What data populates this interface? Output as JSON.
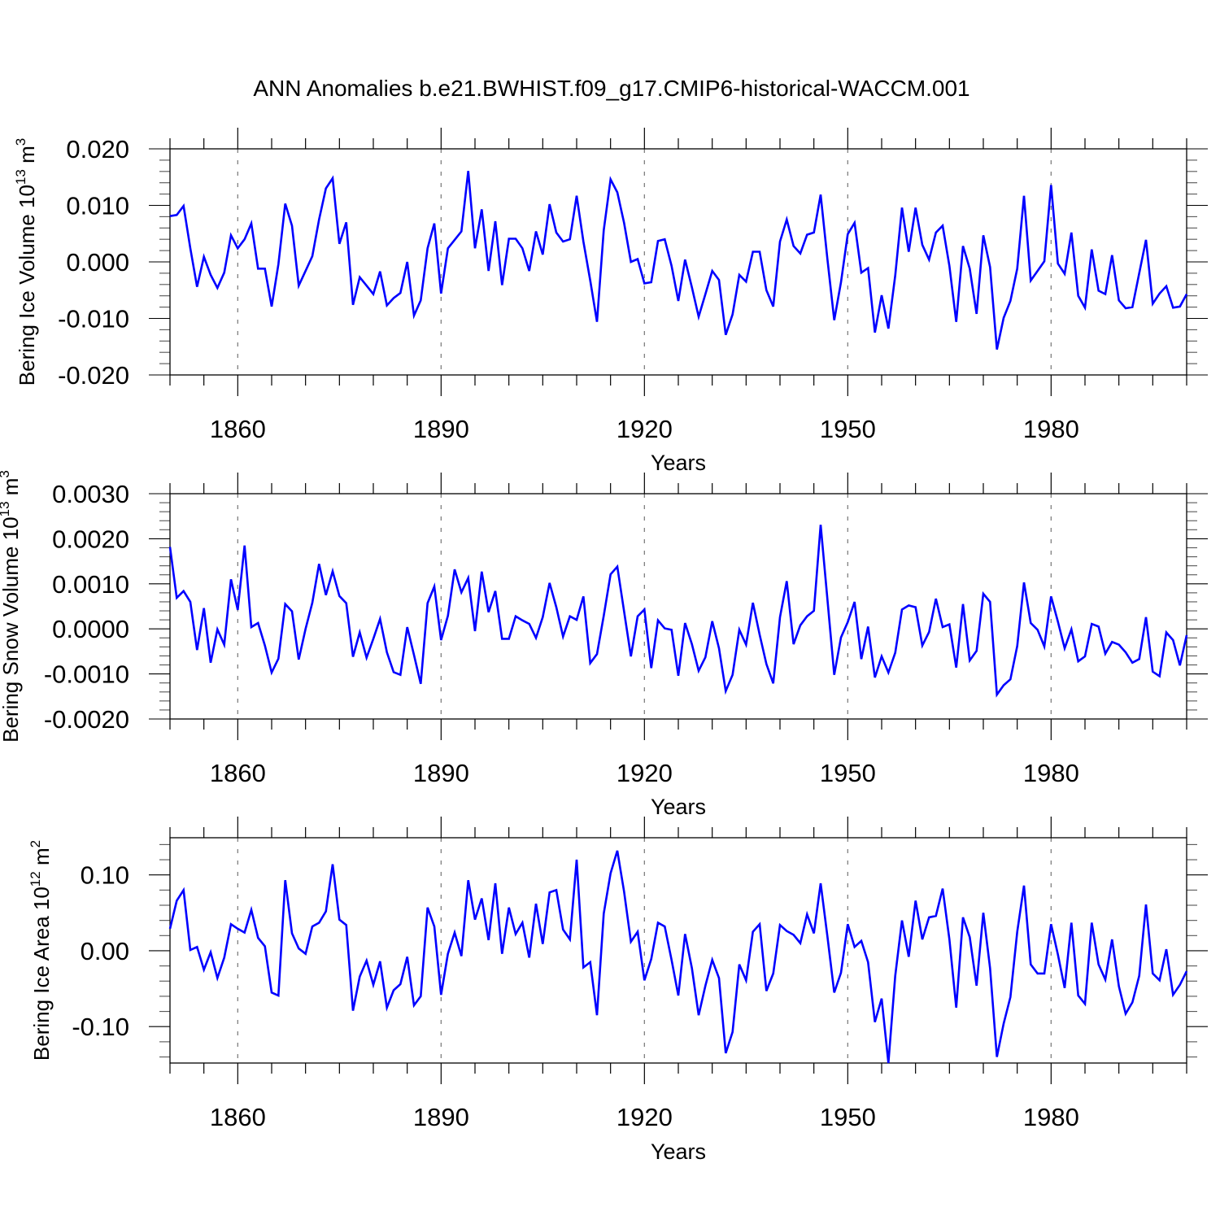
{
  "title": "ANN Anomalies b.e21.BWHIST.f09_g17.CMIP6-historical-WACCM.001",
  "line_color": "#0000ff",
  "grid_color": "#808080",
  "chart_data": [
    {
      "type": "line",
      "xlabel": "Years",
      "ylabel": {
        "text": "Bering Ice Volume 10",
        "exp": "13",
        "unit": " m",
        "unit_exp": "3"
      },
      "xlim": [
        1850,
        2000
      ],
      "ylim": [
        -0.02,
        0.02
      ],
      "xticks": [
        1860,
        1890,
        1920,
        1950,
        1980
      ],
      "xtick_labels": [
        "1860",
        "1890",
        "1920",
        "1950",
        "1980"
      ],
      "yticks": [
        -0.02,
        -0.01,
        0.0,
        0.01,
        0.02
      ],
      "ytick_labels": [
        "-0.020",
        "-0.010",
        "0.000",
        "0.010",
        "0.020"
      ],
      "yminor_step": 0.002,
      "grid": "vertical dashed at major x ticks",
      "x": [
        1850,
        1851,
        1852,
        1853,
        1854,
        1855,
        1856,
        1857,
        1858,
        1859,
        1860,
        1861,
        1862,
        1863,
        1864,
        1865,
        1866,
        1867,
        1868,
        1869,
        1870,
        1871,
        1872,
        1873,
        1874,
        1875,
        1876,
        1877,
        1878,
        1879,
        1880,
        1881,
        1882,
        1883,
        1884,
        1885,
        1886,
        1887,
        1888,
        1889,
        1890,
        1891,
        1892,
        1893,
        1894,
        1895,
        1896,
        1897,
        1898,
        1899,
        1900,
        1901,
        1902,
        1903,
        1904,
        1905,
        1906,
        1907,
        1908,
        1909,
        1910,
        1911,
        1912,
        1913,
        1914,
        1915,
        1916,
        1917,
        1918,
        1919,
        1920,
        1921,
        1922,
        1923,
        1924,
        1925,
        1926,
        1927,
        1928,
        1929,
        1930,
        1931,
        1932,
        1933,
        1934,
        1935,
        1936,
        1937,
        1938,
        1939,
        1940,
        1941,
        1942,
        1943,
        1944,
        1945,
        1946,
        1947,
        1948,
        1949,
        1950,
        1951,
        1952,
        1953,
        1954,
        1955,
        1956,
        1957,
        1958,
        1959,
        1960,
        1961,
        1962,
        1963,
        1964,
        1965,
        1966,
        1967,
        1968,
        1969,
        1970,
        1971,
        1972,
        1973,
        1974,
        1975,
        1976,
        1977,
        1978,
        1979,
        1980,
        1981,
        1982,
        1983,
        1984,
        1985,
        1986,
        1987,
        1988,
        1989,
        1990,
        1991,
        1992,
        1993,
        1994,
        1995,
        1996,
        1997,
        1998,
        1999,
        2000
      ],
      "values": [
        0.0081,
        0.0083,
        0.0099,
        0.0024,
        -0.0044,
        0.0009,
        -0.0023,
        -0.0046,
        -0.0019,
        0.0047,
        0.0024,
        0.004,
        0.0068,
        -0.0012,
        -0.0012,
        -0.0079,
        -0.0004,
        0.0103,
        0.0064,
        -0.0042,
        -0.0016,
        0.001,
        0.0075,
        0.013,
        0.0148,
        0.0032,
        0.007,
        -0.0076,
        -0.0027,
        -0.0042,
        -0.0057,
        -0.0017,
        -0.0077,
        -0.0064,
        -0.0055,
        0.0,
        -0.0095,
        -0.0068,
        0.0024,
        0.0068,
        -0.0056,
        0.0024,
        0.0039,
        0.0054,
        0.0161,
        0.0024,
        0.0093,
        -0.0016,
        0.0072,
        -0.0041,
        0.0041,
        0.0041,
        0.0024,
        -0.0016,
        0.0054,
        0.0013,
        0.0102,
        0.0052,
        0.0036,
        0.004,
        0.0117,
        0.0036,
        -0.0033,
        -0.0106,
        0.0056,
        0.0146,
        0.0123,
        0.0069,
        0.0,
        0.0005,
        -0.0038,
        -0.0036,
        0.0037,
        0.004,
        -0.0007,
        -0.0069,
        0.0004,
        -0.0045,
        -0.0097,
        -0.0057,
        -0.0016,
        -0.0032,
        -0.0129,
        -0.0093,
        -0.0023,
        -0.0035,
        0.0018,
        0.0018,
        -0.005,
        -0.0079,
        0.0036,
        0.0075,
        0.0028,
        0.0015,
        0.0048,
        0.0052,
        0.0119,
        0.0005,
        -0.0103,
        -0.0036,
        0.0049,
        0.0069,
        -0.0019,
        -0.0011,
        -0.0125,
        -0.0059,
        -0.0118,
        -0.0024,
        0.0096,
        0.0018,
        0.0096,
        0.003,
        0.0004,
        0.0052,
        0.0064,
        -0.0007,
        -0.0106,
        0.0028,
        -0.0012,
        -0.0092,
        0.0047,
        -0.0009,
        -0.0155,
        -0.0099,
        -0.0069,
        -0.0012,
        0.0117,
        -0.0033,
        -0.0016,
        0.0001,
        0.0136,
        -0.0003,
        -0.0021,
        0.0052,
        -0.006,
        -0.0081,
        0.0022,
        -0.0051,
        -0.0057,
        0.0012,
        -0.0068,
        -0.0082,
        -0.008,
        -0.002,
        0.0039,
        -0.0074,
        -0.0056,
        -0.0043,
        -0.0081,
        -0.0079,
        -0.0057
      ]
    },
    {
      "type": "line",
      "xlabel": "Years",
      "ylabel": {
        "text": "Bering Snow Volume 10",
        "exp": "13",
        "unit": " m",
        "unit_exp": "3"
      },
      "xlim": [
        1850,
        2000
      ],
      "ylim": [
        -0.002,
        0.003
      ],
      "xticks": [
        1860,
        1890,
        1920,
        1950,
        1980
      ],
      "xtick_labels": [
        "1860",
        "1890",
        "1920",
        "1950",
        "1980"
      ],
      "yticks": [
        -0.002,
        -0.001,
        0.0,
        0.001,
        0.002,
        0.003
      ],
      "ytick_labels": [
        "-0.0020",
        "-0.0010",
        "0.0000",
        "0.0010",
        "0.0020",
        "0.0030"
      ],
      "yminor_step": 0.0002,
      "grid": "vertical dashed at major x ticks",
      "x": [
        1850,
        1851,
        1852,
        1853,
        1854,
        1855,
        1856,
        1857,
        1858,
        1859,
        1860,
        1861,
        1862,
        1863,
        1864,
        1865,
        1866,
        1867,
        1868,
        1869,
        1870,
        1871,
        1872,
        1873,
        1874,
        1875,
        1876,
        1877,
        1878,
        1879,
        1880,
        1881,
        1882,
        1883,
        1884,
        1885,
        1886,
        1887,
        1888,
        1889,
        1890,
        1891,
        1892,
        1893,
        1894,
        1895,
        1896,
        1897,
        1898,
        1899,
        1900,
        1901,
        1902,
        1903,
        1904,
        1905,
        1906,
        1907,
        1908,
        1909,
        1910,
        1911,
        1912,
        1913,
        1914,
        1915,
        1916,
        1917,
        1918,
        1919,
        1920,
        1921,
        1922,
        1923,
        1924,
        1925,
        1926,
        1927,
        1928,
        1929,
        1930,
        1931,
        1932,
        1933,
        1934,
        1935,
        1936,
        1937,
        1938,
        1939,
        1940,
        1941,
        1942,
        1943,
        1944,
        1945,
        1946,
        1947,
        1948,
        1949,
        1950,
        1951,
        1952,
        1953,
        1954,
        1955,
        1956,
        1957,
        1958,
        1959,
        1960,
        1961,
        1962,
        1963,
        1964,
        1965,
        1966,
        1967,
        1968,
        1969,
        1970,
        1971,
        1972,
        1973,
        1974,
        1975,
        1976,
        1977,
        1978,
        1979,
        1980,
        1981,
        1982,
        1983,
        1984,
        1985,
        1986,
        1987,
        1988,
        1989,
        1990,
        1991,
        1992,
        1993,
        1994,
        1995,
        1996,
        1997,
        1998,
        1999,
        2000
      ],
      "values": [
        0.00182,
        0.00069,
        0.00084,
        0.0006,
        -0.00047,
        0.00046,
        -0.00075,
        -1e-05,
        -0.00035,
        0.0011,
        0.00042,
        0.00185,
        4e-05,
        0.00013,
        -0.00037,
        -0.00097,
        -0.00066,
        0.00055,
        0.00039,
        -0.00068,
        0.0,
        0.00058,
        0.00144,
        0.00075,
        0.00128,
        0.00073,
        0.00057,
        -0.00062,
        -8e-05,
        -0.00064,
        -0.00022,
        0.00022,
        -0.00052,
        -0.00096,
        -0.00102,
        4e-05,
        -0.00058,
        -0.00122,
        0.00057,
        0.00094,
        -0.00025,
        0.00029,
        0.00132,
        0.00081,
        0.00113,
        -5e-05,
        0.00127,
        0.00037,
        0.00084,
        -0.00022,
        -0.00022,
        0.00028,
        0.00019,
        0.00011,
        -0.0002,
        0.00026,
        0.00102,
        0.00048,
        -0.00017,
        0.00028,
        0.0002,
        0.00072,
        -0.00076,
        -0.00056,
        0.00029,
        0.00121,
        0.00138,
        0.00039,
        -0.00061,
        0.00028,
        0.00043,
        -0.00087,
        0.00019,
        1e-05,
        -2e-05,
        -0.00104,
        0.00013,
        -0.00034,
        -0.00093,
        -0.00063,
        0.00017,
        -0.00043,
        -0.00138,
        -0.00102,
        -2e-05,
        -0.00035,
        0.00058,
        -0.00013,
        -0.00078,
        -0.00121,
        0.00026,
        0.00106,
        -0.00034,
        8e-05,
        0.00028,
        0.0004,
        0.00231,
        0.00066,
        -0.00102,
        -0.00019,
        0.00015,
        0.0006,
        -0.00067,
        5e-05,
        -0.00108,
        -0.00061,
        -0.00097,
        -0.00053,
        0.00043,
        0.00052,
        0.00048,
        -0.00037,
        -7e-05,
        0.00067,
        4e-05,
        0.0001,
        -0.00086,
        0.00055,
        -0.0007,
        -0.00049,
        0.00078,
        0.0006,
        -0.00146,
        -0.00125,
        -0.00112,
        -0.00038,
        0.00103,
        0.00013,
        -2e-05,
        -0.00039,
        0.00072,
        0.00016,
        -0.00043,
        -1e-05,
        -0.00072,
        -0.00061,
        0.00011,
        5e-05,
        -0.00055,
        -0.00029,
        -0.00035,
        -0.00052,
        -0.00075,
        -0.00067,
        0.00026,
        -0.00095,
        -0.00105,
        -8e-05,
        -0.00025,
        -0.00081,
        -0.00014
      ]
    },
    {
      "type": "line",
      "xlabel": "Years",
      "ylabel": {
        "text": "Bering Ice Area 10",
        "exp": "12",
        "unit": " m",
        "unit_exp": "2"
      },
      "xlim": [
        1850,
        2000
      ],
      "ylim": [
        -0.148,
        0.149
      ],
      "xticks": [
        1860,
        1890,
        1920,
        1950,
        1980
      ],
      "xtick_labels": [
        "1860",
        "1890",
        "1920",
        "1950",
        "1980"
      ],
      "yticks": [
        -0.1,
        0.0,
        0.1
      ],
      "ytick_labels": [
        "-0.10",
        "0.00",
        "0.10"
      ],
      "yminor_step": 0.02,
      "grid": "vertical dashed at major x ticks",
      "x": [
        1850,
        1851,
        1852,
        1853,
        1854,
        1855,
        1856,
        1857,
        1858,
        1859,
        1860,
        1861,
        1862,
        1863,
        1864,
        1865,
        1866,
        1867,
        1868,
        1869,
        1870,
        1871,
        1872,
        1873,
        1874,
        1875,
        1876,
        1877,
        1878,
        1879,
        1880,
        1881,
        1882,
        1883,
        1884,
        1885,
        1886,
        1887,
        1888,
        1889,
        1890,
        1891,
        1892,
        1893,
        1894,
        1895,
        1896,
        1897,
        1898,
        1899,
        1900,
        1901,
        1902,
        1903,
        1904,
        1905,
        1906,
        1907,
        1908,
        1909,
        1910,
        1911,
        1912,
        1913,
        1914,
        1915,
        1916,
        1917,
        1918,
        1919,
        1920,
        1921,
        1922,
        1923,
        1924,
        1925,
        1926,
        1927,
        1928,
        1929,
        1930,
        1931,
        1932,
        1933,
        1934,
        1935,
        1936,
        1937,
        1938,
        1939,
        1940,
        1941,
        1942,
        1943,
        1944,
        1945,
        1946,
        1947,
        1948,
        1949,
        1950,
        1951,
        1952,
        1953,
        1954,
        1955,
        1956,
        1957,
        1958,
        1959,
        1960,
        1961,
        1962,
        1963,
        1964,
        1965,
        1966,
        1967,
        1968,
        1969,
        1970,
        1971,
        1972,
        1973,
        1974,
        1975,
        1976,
        1977,
        1978,
        1979,
        1980,
        1981,
        1982,
        1983,
        1984,
        1985,
        1986,
        1987,
        1988,
        1989,
        1990,
        1991,
        1992,
        1993,
        1994,
        1995,
        1996,
        1997,
        1998,
        1999,
        2000
      ],
      "values": [
        0.029,
        0.066,
        0.08,
        0.001,
        0.005,
        -0.025,
        -0.002,
        -0.036,
        -0.009,
        0.035,
        0.029,
        0.024,
        0.054,
        0.017,
        0.006,
        -0.055,
        -0.059,
        0.093,
        0.023,
        0.003,
        -0.004,
        0.032,
        0.037,
        0.052,
        0.114,
        0.041,
        0.034,
        -0.079,
        -0.034,
        -0.013,
        -0.045,
        -0.014,
        -0.075,
        -0.052,
        -0.044,
        -0.008,
        -0.072,
        -0.06,
        0.057,
        0.032,
        -0.058,
        -0.004,
        0.024,
        -0.007,
        0.093,
        0.041,
        0.069,
        0.014,
        0.089,
        -0.004,
        0.057,
        0.022,
        0.037,
        -0.009,
        0.062,
        0.009,
        0.077,
        0.08,
        0.028,
        0.015,
        0.12,
        -0.022,
        -0.015,
        -0.085,
        0.049,
        0.102,
        0.132,
        0.078,
        0.012,
        0.025,
        -0.039,
        -0.011,
        0.037,
        0.032,
        -0.012,
        -0.059,
        0.022,
        -0.023,
        -0.085,
        -0.046,
        -0.012,
        -0.036,
        -0.135,
        -0.107,
        -0.018,
        -0.039,
        0.025,
        0.035,
        -0.053,
        -0.03,
        0.034,
        0.026,
        0.021,
        0.01,
        0.048,
        0.023,
        0.089,
        0.019,
        -0.055,
        -0.029,
        0.035,
        0.005,
        0.013,
        -0.015,
        -0.094,
        -0.063,
        -0.148,
        -0.033,
        0.04,
        -0.008,
        0.066,
        0.015,
        0.044,
        0.046,
        0.082,
        0.015,
        -0.075,
        0.044,
        0.018,
        -0.046,
        0.05,
        -0.023,
        -0.14,
        -0.096,
        -0.061,
        0.025,
        0.086,
        -0.018,
        -0.03,
        -0.03,
        0.035,
        -0.005,
        -0.049,
        0.037,
        -0.059,
        -0.07,
        0.037,
        -0.018,
        -0.038,
        0.015,
        -0.047,
        -0.083,
        -0.068,
        -0.033,
        0.061,
        -0.03,
        -0.039,
        0.002,
        -0.058,
        -0.045,
        -0.027
      ]
    }
  ]
}
